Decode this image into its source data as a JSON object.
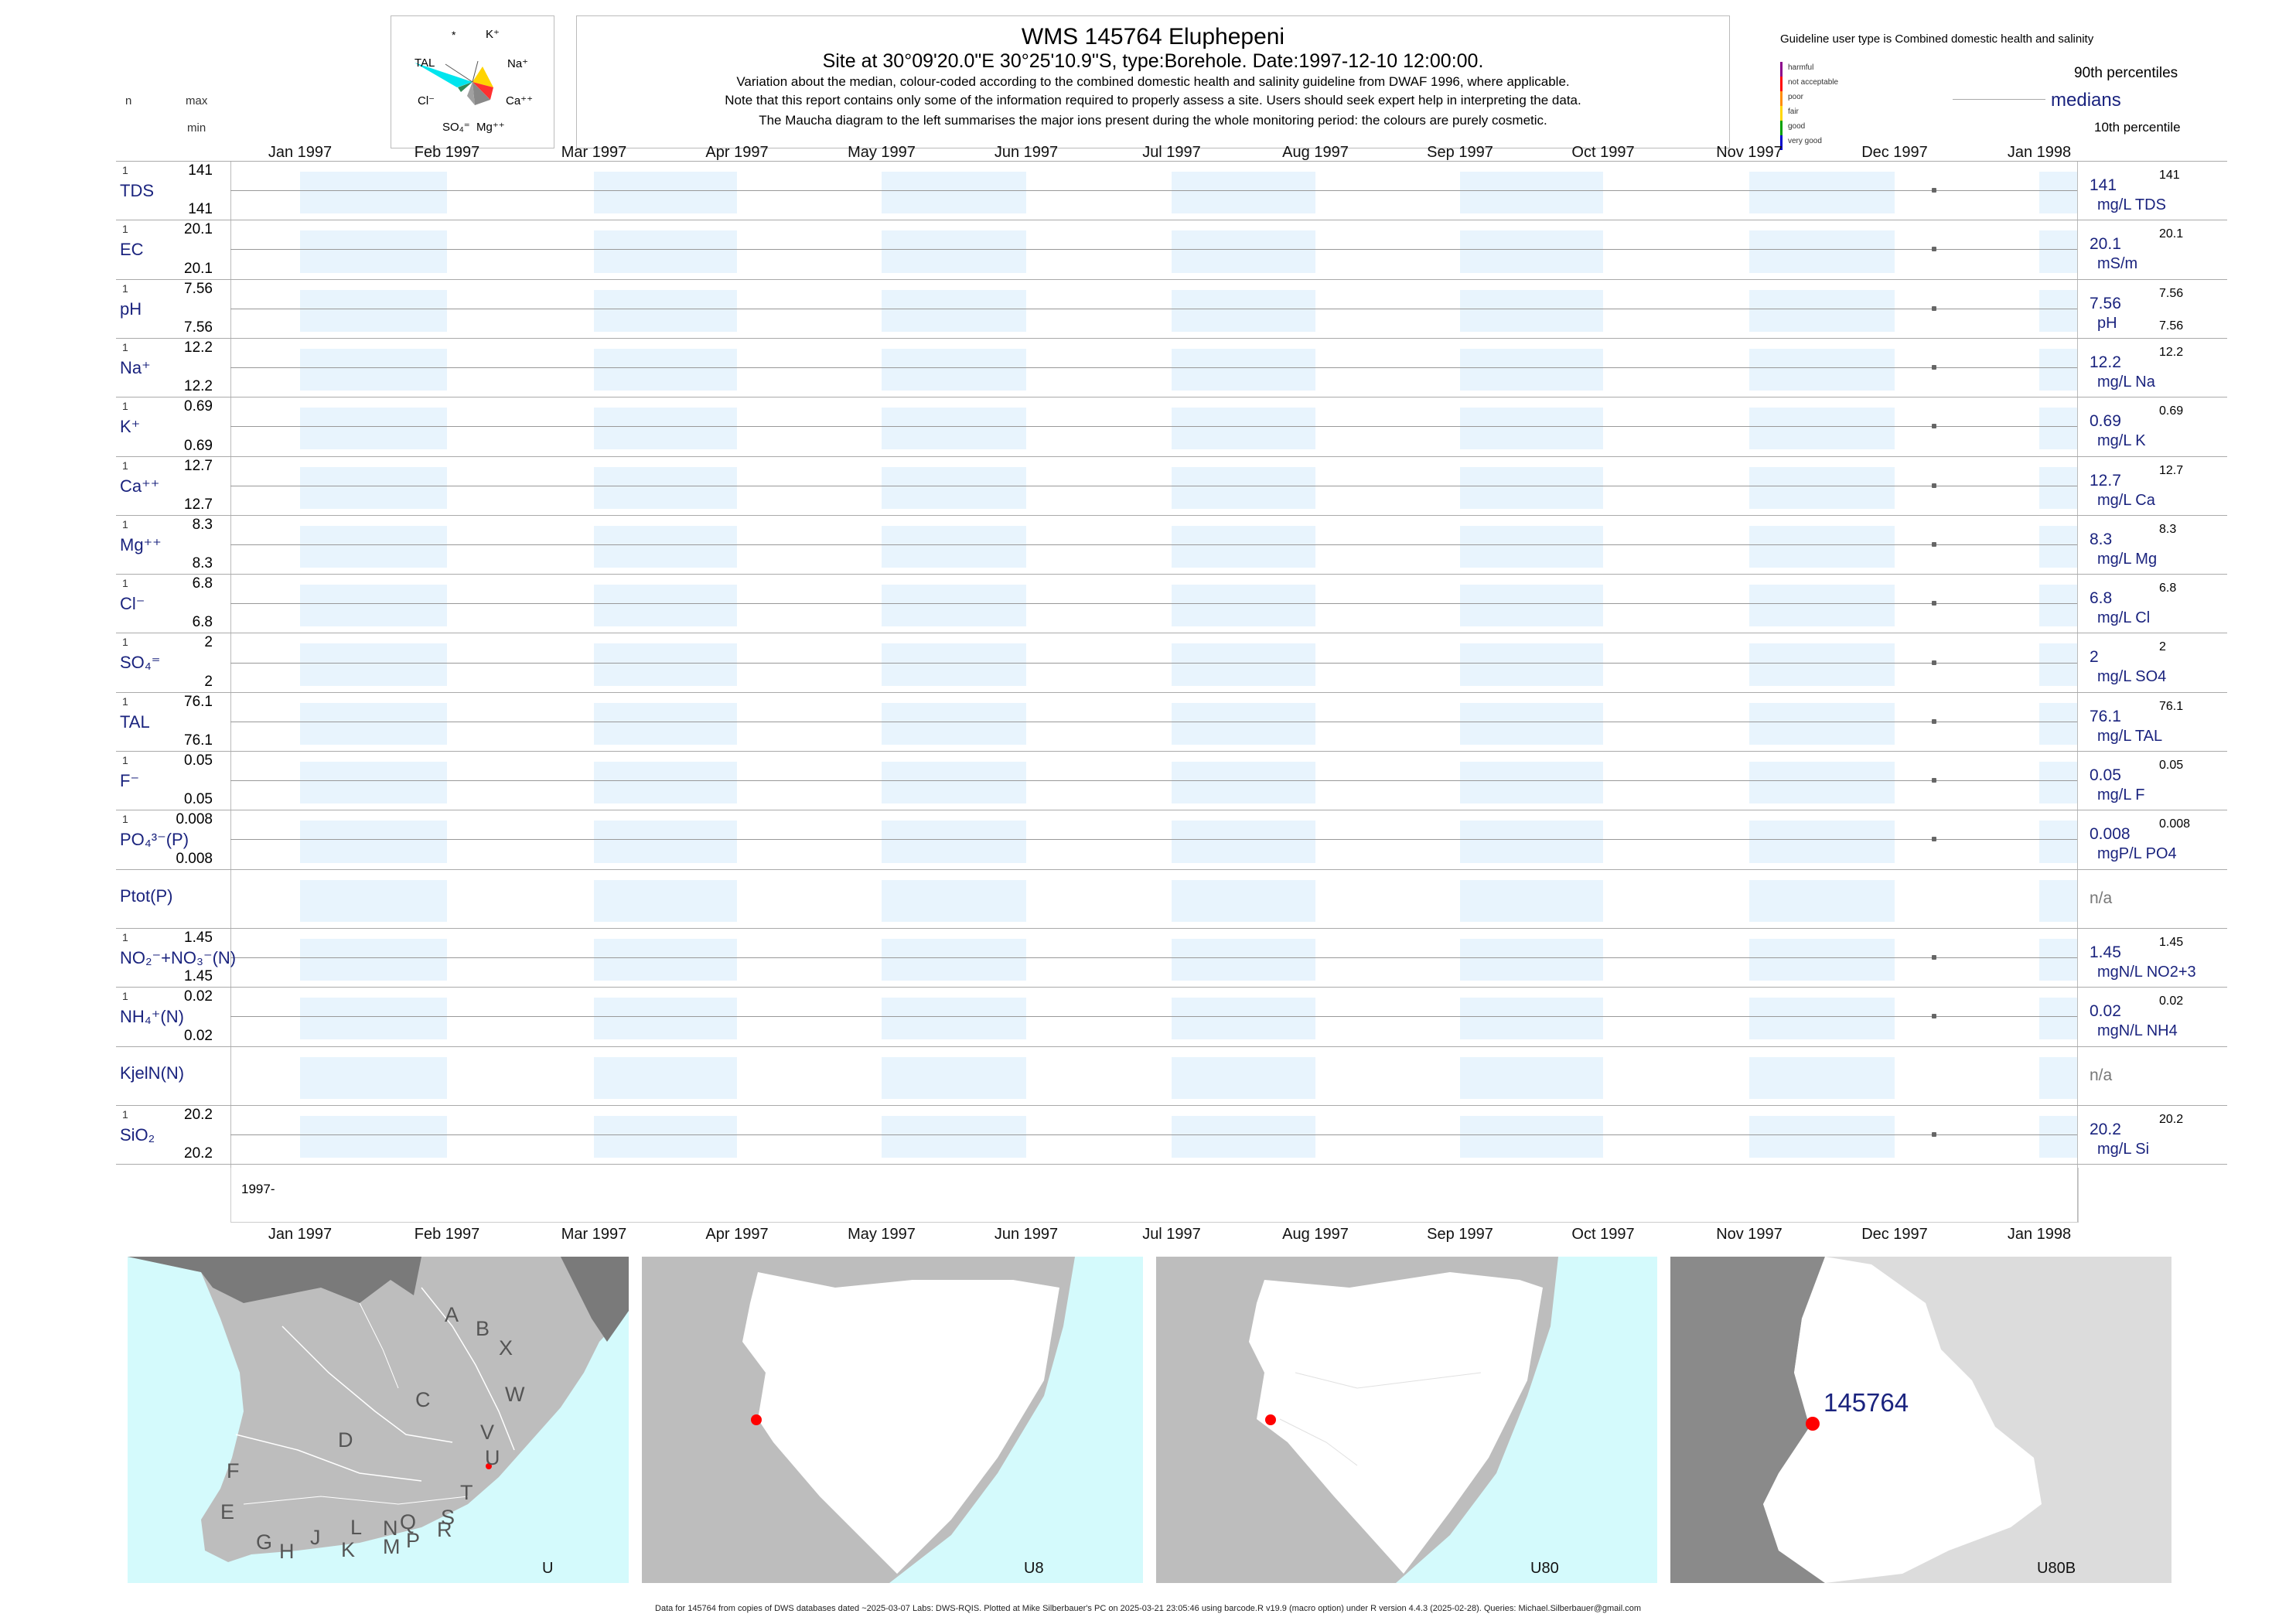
{
  "header": {
    "title": "WMS 145764  Eluphepeni",
    "subtitle": "Site at 30°09'20.0\"E 30°25'10.9\"S, type:Borehole. Date:1997-12-10 12:00:00.",
    "note1": "Variation about the median,  colour-coded according to the combined domestic health and salinity guideline from DWAF 1996, where applicable.",
    "note2": "Note that this report contains only some of the information required to properly assess a site. Users should seek expert help in interpreting the data.",
    "note3": "The Maucha diagram to the left summarises the major ions present during the whole monitoring period: the colours are purely cosmetic."
  },
  "left_headers": {
    "n": "n",
    "max": "max",
    "min": "min"
  },
  "maucha": {
    "labels": {
      "star": "*",
      "k": "K⁺",
      "tal": "TAL",
      "na": "Na⁺",
      "cl": "Cl⁻",
      "ca": "Ca⁺⁺",
      "so4": "SO₄⁼",
      "mg": "Mg⁺⁺"
    },
    "colors": {
      "tal": "#00e5ee",
      "na": "#ffd400",
      "ca": "#ff3030",
      "mg": "#888888",
      "so4": "#a0a0a0",
      "cl": "#2e8b57",
      "k": "#7a5c00"
    }
  },
  "legend": {
    "guideline": "Guideline user type is Combined domestic health and salinity",
    "categories": [
      {
        "label": "harmful",
        "color": "#8b008b"
      },
      {
        "label": "not acceptable",
        "color": "#ff0000"
      },
      {
        "label": "poor",
        "color": "#ff8c00"
      },
      {
        "label": "fair",
        "color": "#ffd700"
      },
      {
        "label": "good",
        "color": "#00a000"
      },
      {
        "label": "very good",
        "color": "#0000cd"
      }
    ],
    "p90": "90th percentiles",
    "medians": "medians",
    "p10": "10th percentile"
  },
  "months": [
    "Jan 1997",
    "Feb 1997",
    "Mar 1997",
    "Apr 1997",
    "May 1997",
    "Jun 1997",
    "Jul 1997",
    "Aug 1997",
    "Sep 1997",
    "Oct 1997",
    "Nov 1997",
    "Dec 1997",
    "Jan 1998"
  ],
  "year_label": "1997-",
  "chart_data": {
    "type": "scatter",
    "x_range": [
      "1997-01-01",
      "1998-01-01"
    ],
    "sample_date": "1997-12-10",
    "series": [
      {
        "name": "TDS",
        "n": "1",
        "max": "141",
        "min": "141",
        "median": "141",
        "unit": "mg/L TDS",
        "p90": "141",
        "p10": ""
      },
      {
        "name": "EC",
        "n": "1",
        "max": "20.1",
        "min": "20.1",
        "median": "20.1",
        "unit": "mS/m",
        "p90": "20.1",
        "p10": ""
      },
      {
        "name": "pH",
        "n": "1",
        "max": "7.56",
        "min": "7.56",
        "median": "7.56",
        "unit": "pH",
        "p90": "7.56",
        "p10": "7.56"
      },
      {
        "name": "Na⁺",
        "n": "1",
        "max": "12.2",
        "min": "12.2",
        "median": "12.2",
        "unit": "mg/L Na",
        "p90": "12.2",
        "p10": ""
      },
      {
        "name": "K⁺",
        "n": "1",
        "max": "0.69",
        "min": "0.69",
        "median": "0.69",
        "unit": "mg/L K",
        "p90": "0.69",
        "p10": ""
      },
      {
        "name": "Ca⁺⁺",
        "n": "1",
        "max": "12.7",
        "min": "12.7",
        "median": "12.7",
        "unit": "mg/L Ca",
        "p90": "12.7",
        "p10": ""
      },
      {
        "name": "Mg⁺⁺",
        "n": "1",
        "max": "8.3",
        "min": "8.3",
        "median": "8.3",
        "unit": "mg/L Mg",
        "p90": "8.3",
        "p10": ""
      },
      {
        "name": "Cl⁻",
        "n": "1",
        "max": "6.8",
        "min": "6.8",
        "median": "6.8",
        "unit": "mg/L Cl",
        "p90": "6.8",
        "p10": ""
      },
      {
        "name": "SO₄⁼",
        "n": "1",
        "max": "2",
        "min": "2",
        "median": "2",
        "unit": "mg/L SO4",
        "p90": "2",
        "p10": ""
      },
      {
        "name": "TAL",
        "n": "1",
        "max": "76.1",
        "min": "76.1",
        "median": "76.1",
        "unit": "mg/L TAL",
        "p90": "76.1",
        "p10": ""
      },
      {
        "name": "F⁻",
        "n": "1",
        "max": "0.05",
        "min": "0.05",
        "median": "0.05",
        "unit": "mg/L F",
        "p90": "0.05",
        "p10": ""
      },
      {
        "name": "PO₄³⁻(P)",
        "n": "1",
        "max": "0.008",
        "min": "0.008",
        "median": "0.008",
        "unit": "mgP/L PO4",
        "p90": "0.008",
        "p10": ""
      },
      {
        "name": "Ptot(P)",
        "n": "",
        "max": "",
        "min": "",
        "median": "n/a",
        "unit": "",
        "p90": "",
        "p10": ""
      },
      {
        "name": "NO₂⁻+NO₃⁻(N)",
        "n": "1",
        "max": "1.45",
        "min": "1.45",
        "median": "1.45",
        "unit": "mgN/L NO2+3",
        "p90": "1.45",
        "p10": ""
      },
      {
        "name": "NH₄⁺(N)",
        "n": "1",
        "max": "0.02",
        "min": "0.02",
        "median": "0.02",
        "unit": "mgN/L NH4",
        "p90": "0.02",
        "p10": ""
      },
      {
        "name": "KjelN(N)",
        "n": "",
        "max": "",
        "min": "",
        "median": "n/a",
        "unit": "",
        "p90": "",
        "p10": ""
      },
      {
        "name": "SiO₂",
        "n": "1",
        "max": "20.2",
        "min": "20.2",
        "median": "20.2",
        "unit": "mg/L Si",
        "p90": "20.2",
        "p10": ""
      }
    ]
  },
  "maps": {
    "m1": {
      "label": "U",
      "letters": [
        "A",
        "B",
        "X",
        "W",
        "C",
        "D",
        "V",
        "U",
        "F",
        "T",
        "E",
        "S",
        "R",
        "Q",
        "N",
        "L",
        "M",
        "K",
        "P",
        "J",
        "H",
        "G"
      ]
    },
    "m2": {
      "label": "U8"
    },
    "m3": {
      "label": "U80"
    },
    "m4": {
      "label": "U80B",
      "site": "145764"
    },
    "colors": {
      "sea": "#d4fafc",
      "land": "#bdbdbd",
      "dark": "#7a7a7a",
      "white": "#ffffff",
      "site": "#ff0000"
    }
  },
  "footer": "Data for 145764 from copies of DWS databases dated ~2025-03-07 Labs: DWS-RQIS. Plotted at Mike Silberbauer's PC on 2025-03-21 23:05:46 using barcode.R v19.9 (macro option) under R version 4.4.3 (2025-02-28). Queries: Michael.Silberbauer@gmail.com"
}
